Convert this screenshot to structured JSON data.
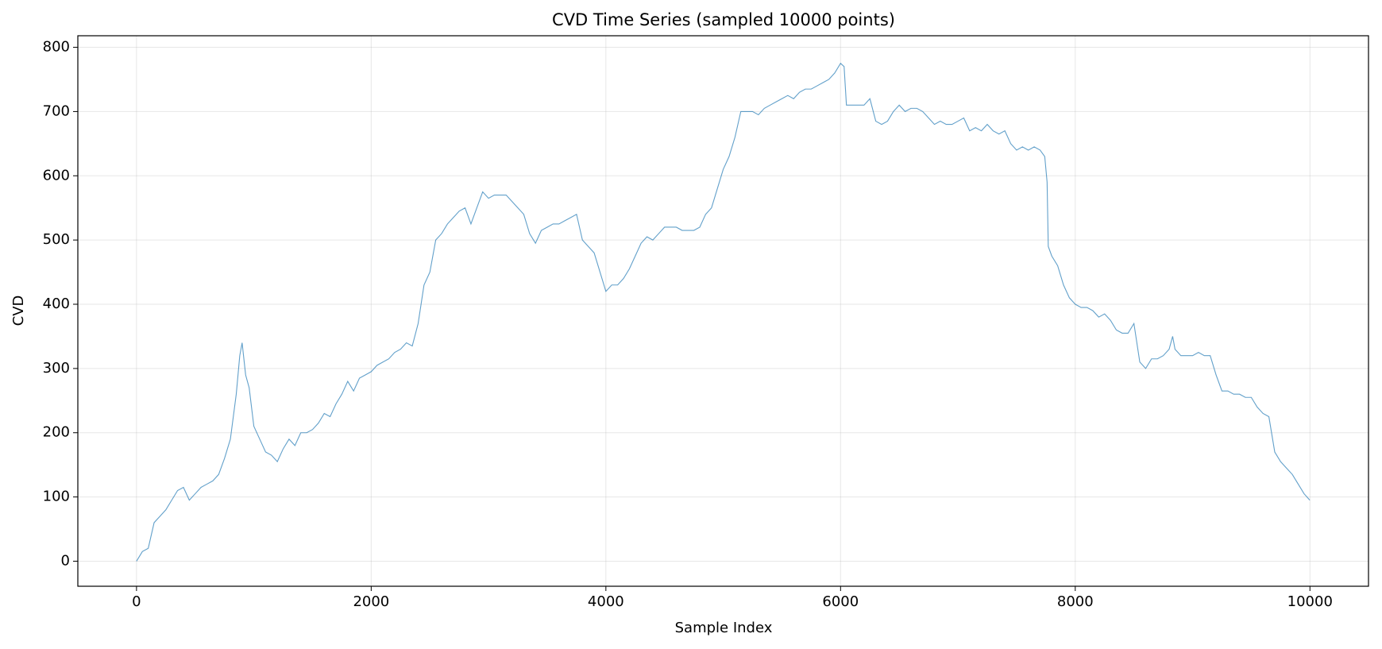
{
  "chart_data": {
    "type": "line",
    "title": "CVD Time Series (sampled 10000 points)",
    "x_label": "Sample Index",
    "y_label": "CVD",
    "x": [
      0,
      50,
      100,
      150,
      200,
      250,
      300,
      350,
      400,
      450,
      500,
      550,
      600,
      650,
      700,
      750,
      800,
      850,
      880,
      900,
      930,
      960,
      1000,
      1050,
      1100,
      1150,
      1200,
      1250,
      1300,
      1350,
      1400,
      1450,
      1500,
      1550,
      1600,
      1650,
      1700,
      1750,
      1800,
      1850,
      1900,
      1950,
      2000,
      2050,
      2100,
      2150,
      2200,
      2250,
      2300,
      2350,
      2400,
      2450,
      2500,
      2550,
      2600,
      2650,
      2700,
      2750,
      2800,
      2850,
      2900,
      2950,
      3000,
      3050,
      3100,
      3150,
      3200,
      3300,
      3350,
      3400,
      3450,
      3500,
      3550,
      3600,
      3650,
      3700,
      3750,
      3800,
      3850,
      3900,
      3950,
      4000,
      4050,
      4100,
      4150,
      4200,
      4250,
      4300,
      4350,
      4400,
      4450,
      4500,
      4550,
      4600,
      4650,
      4700,
      4750,
      4800,
      4850,
      4900,
      4950,
      5000,
      5050,
      5100,
      5150,
      5200,
      5250,
      5300,
      5350,
      5400,
      5450,
      5500,
      5550,
      5600,
      5650,
      5700,
      5750,
      5800,
      5850,
      5900,
      5950,
      6000,
      6030,
      6050,
      6100,
      6200,
      6250,
      6300,
      6350,
      6400,
      6450,
      6500,
      6550,
      6600,
      6650,
      6700,
      6750,
      6800,
      6850,
      6900,
      6950,
      7000,
      7050,
      7100,
      7150,
      7200,
      7250,
      7300,
      7350,
      7400,
      7450,
      7500,
      7550,
      7600,
      7650,
      7700,
      7740,
      7760,
      7770,
      7800,
      7850,
      7900,
      7950,
      8000,
      8050,
      8100,
      8150,
      8200,
      8250,
      8300,
      8350,
      8400,
      8450,
      8500,
      8550,
      8600,
      8650,
      8700,
      8750,
      8800,
      8830,
      8850,
      8900,
      8950,
      9000,
      9050,
      9100,
      9150,
      9200,
      9250,
      9300,
      9350,
      9400,
      9450,
      9500,
      9550,
      9600,
      9650,
      9700,
      9750,
      9800,
      9850,
      9900,
      9950,
      9999
    ],
    "series": [
      {
        "name": "CVD",
        "color": "#1f77b4",
        "values": [
          0,
          15,
          20,
          60,
          70,
          80,
          95,
          110,
          115,
          95,
          105,
          115,
          120,
          125,
          135,
          160,
          190,
          260,
          320,
          340,
          290,
          270,
          210,
          190,
          170,
          165,
          155,
          175,
          190,
          180,
          200,
          200,
          205,
          215,
          230,
          225,
          245,
          260,
          280,
          265,
          285,
          290,
          295,
          305,
          310,
          315,
          325,
          330,
          340,
          335,
          370,
          430,
          450,
          500,
          510,
          525,
          535,
          545,
          550,
          525,
          550,
          575,
          565,
          570,
          570,
          570,
          560,
          540,
          510,
          495,
          515,
          520,
          525,
          525,
          530,
          535,
          540,
          500,
          490,
          480,
          450,
          420,
          430,
          430,
          440,
          455,
          475,
          495,
          505,
          500,
          510,
          520,
          520,
          520,
          515,
          515,
          515,
          520,
          540,
          550,
          580,
          610,
          630,
          660,
          700,
          700,
          700,
          695,
          705,
          710,
          715,
          720,
          725,
          720,
          730,
          735,
          735,
          740,
          745,
          750,
          760,
          775,
          770,
          710,
          710,
          710,
          720,
          685,
          680,
          685,
          700,
          710,
          700,
          705,
          705,
          700,
          690,
          680,
          685,
          680,
          680,
          685,
          690,
          670,
          675,
          670,
          680,
          670,
          665,
          670,
          650,
          640,
          645,
          640,
          645,
          640,
          630,
          590,
          490,
          475,
          460,
          430,
          410,
          400,
          395,
          395,
          390,
          380,
          385,
          375,
          360,
          355,
          355,
          370,
          310,
          300,
          315,
          315,
          320,
          330,
          350,
          330,
          320,
          320,
          320,
          325,
          320,
          320,
          290,
          265,
          265,
          260,
          260,
          255,
          255,
          240,
          230,
          225,
          170,
          155,
          145,
          135,
          120,
          105,
          95
        ]
      }
    ],
    "xlim": [
      -500,
      10499
    ],
    "ylim": [
      -39,
      818
    ],
    "xticks": [
      0,
      2000,
      4000,
      6000,
      8000,
      10000
    ],
    "yticks": [
      0,
      100,
      200,
      300,
      400,
      500,
      600,
      700,
      800
    ],
    "grid": true
  }
}
